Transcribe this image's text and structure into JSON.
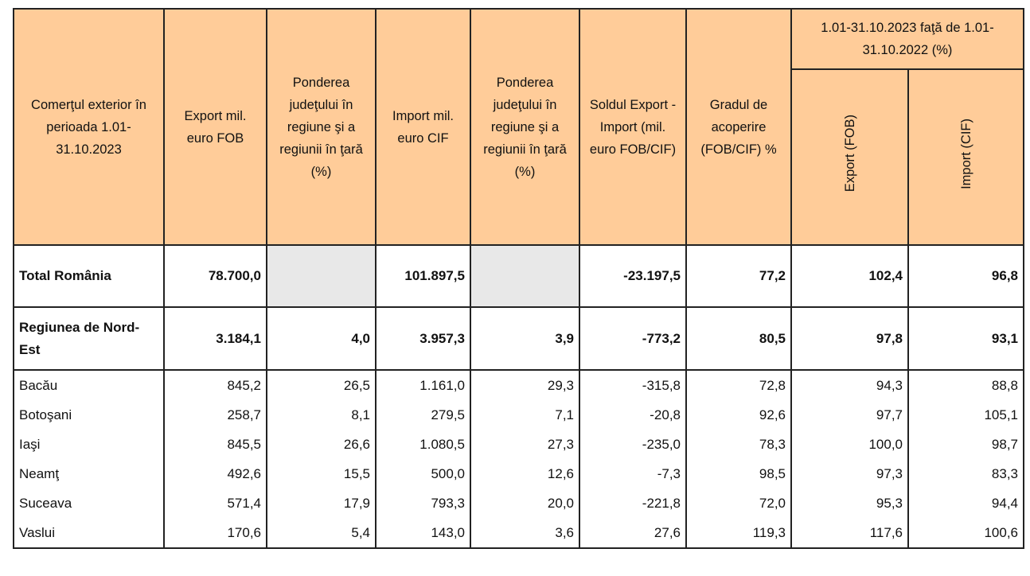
{
  "header": {
    "period": "Comerţul exterior în perioada 1.01-31.10.2023",
    "export": "Export mil. euro FOB",
    "share_export": "Ponderea judeţului în regiune şi a regiunii în ţară (%)",
    "import": "Import mil. euro CIF",
    "share_import": "Ponderea judeţului în regiune şi a regiunii în ţară (%)",
    "balance": "Soldul Export - Import (mil. euro FOB/CIF)",
    "coverage": "Gradul de acoperire (FOB/CIF) %",
    "comparison": "1.01-31.10.2023 faţă de 1.01-31.10.2022 (%)",
    "cmp_export": "Export (FOB)",
    "cmp_import": "Import (CIF)"
  },
  "total": {
    "name": "Total România",
    "export": "78.700,0",
    "share_export": "",
    "import": "101.897,5",
    "share_import": "",
    "balance": "-23.197,5",
    "coverage": "77,2",
    "cmp_export": "102,4",
    "cmp_import": "96,8"
  },
  "region": {
    "name": "Regiunea de Nord-Est",
    "export": "3.184,1",
    "share_export": "4,0",
    "import": "3.957,3",
    "share_import": "3,9",
    "balance": "-773,2",
    "coverage": "80,5",
    "cmp_export": "97,8",
    "cmp_import": "93,1"
  },
  "rows": [
    {
      "name": "Bacău",
      "export": "845,2",
      "share_export": "26,5",
      "import": "1.161,0",
      "share_import": "29,3",
      "balance": "-315,8",
      "coverage": "72,8",
      "cmp_export": "94,3",
      "cmp_import": "88,8"
    },
    {
      "name": "Botoşani",
      "export": "258,7",
      "share_export": "8,1",
      "import": "279,5",
      "share_import": "7,1",
      "balance": "-20,8",
      "coverage": "92,6",
      "cmp_export": "97,7",
      "cmp_import": "105,1"
    },
    {
      "name": "Iaşi",
      "export": "845,5",
      "share_export": "26,6",
      "import": "1.080,5",
      "share_import": "27,3",
      "balance": "-235,0",
      "coverage": "78,3",
      "cmp_export": "100,0",
      "cmp_import": "98,7"
    },
    {
      "name": "Neamţ",
      "export": "492,6",
      "share_export": "15,5",
      "import": "500,0",
      "share_import": "12,6",
      "balance": "-7,3",
      "coverage": "98,5",
      "cmp_export": "97,3",
      "cmp_import": "83,3"
    },
    {
      "name": "Suceava",
      "export": "571,4",
      "share_export": "17,9",
      "import": "793,3",
      "share_import": "20,0",
      "balance": "-221,8",
      "coverage": "72,0",
      "cmp_export": "95,3",
      "cmp_import": "94,4"
    },
    {
      "name": "Vaslui",
      "export": "170,6",
      "share_export": "5,4",
      "import": "143,0",
      "share_import": "3,6",
      "balance": "27,6",
      "coverage": "119,3",
      "cmp_export": "117,6",
      "cmp_import": "100,6"
    }
  ],
  "colors": {
    "header_bg": "#FFCC99",
    "empty_cell": "#E8E8E8"
  }
}
